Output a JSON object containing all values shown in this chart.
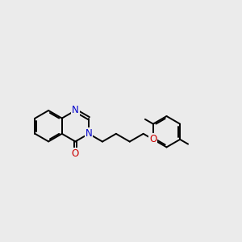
{
  "bg_color": "#ebebeb",
  "bond_color": "#000000",
  "N_color": "#0000cc",
  "O_color": "#cc0000",
  "line_width": 1.4,
  "dbo": 0.055,
  "font_size": 8.5,
  "shrink": 0.1,
  "bl": 0.62,
  "xlim": [
    0,
    9.5
  ],
  "ylim": [
    1.5,
    6.5
  ]
}
